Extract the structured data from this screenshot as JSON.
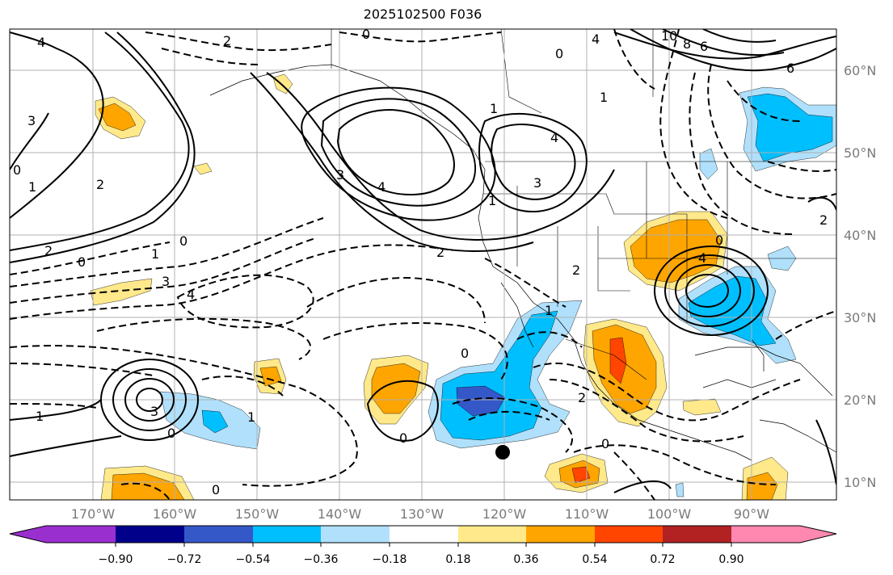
{
  "title": "2025102500 F036",
  "colors": {
    "neg_090": "#9a2fd0",
    "neg_072": "#00008b",
    "neg_054": "#3558c9",
    "neg_036": "#00bfff",
    "neg_018": "#b0e0fb",
    "neutral": "#ffffff",
    "pos_018": "#ffe98a",
    "pos_036": "#ffa500",
    "pos_054": "#ff4500",
    "pos_072": "#b22222",
    "pos_090": "#ff88b0"
  },
  "lat_labels": [
    "60°N",
    "50°N",
    "40°N",
    "30°N",
    "20°N",
    "10°N"
  ],
  "lon_labels": [
    "170°W",
    "160°W",
    "150°W",
    "140°W",
    "130°W",
    "120°W",
    "110°W",
    "100°W",
    "90°W"
  ],
  "colorbar": {
    "ticks": [
      "−0.90",
      "−0.72",
      "−0.54",
      "−0.36",
      "−0.18",
      "0.18",
      "0.36",
      "0.54",
      "0.72",
      "0.90"
    ]
  },
  "contour_labels": [
    "4",
    "2",
    "1",
    "0",
    "3",
    "2",
    "1",
    "0",
    "2",
    "0",
    "1",
    "3",
    "4",
    "3",
    "4",
    "1",
    "0",
    "2",
    "1",
    "4",
    "3",
    "1",
    "0",
    "10",
    "8",
    "6",
    "4",
    "6",
    "2",
    "0",
    "4",
    "0",
    "2",
    "0",
    "1",
    "3",
    "1",
    "0",
    "0",
    "2",
    "0",
    "1"
  ],
  "marker": "station-dot"
}
